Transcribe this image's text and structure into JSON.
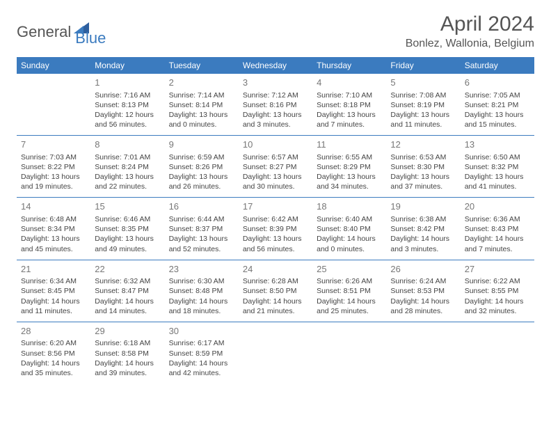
{
  "logo": {
    "general": "General",
    "blue": "Blue"
  },
  "title": "April 2024",
  "location": "Bonlez, Wallonia, Belgium",
  "colors": {
    "header_bg": "#3b7bbf",
    "header_text": "#ffffff",
    "text": "#444444",
    "title_text": "#555555",
    "border": "#3b7bbf"
  },
  "weekdays": [
    "Sunday",
    "Monday",
    "Tuesday",
    "Wednesday",
    "Thursday",
    "Friday",
    "Saturday"
  ],
  "weeks": [
    [
      {
        "day": "",
        "sunrise": "",
        "sunset": "",
        "daylight1": "",
        "daylight2": ""
      },
      {
        "day": "1",
        "sunrise": "Sunrise: 7:16 AM",
        "sunset": "Sunset: 8:13 PM",
        "daylight1": "Daylight: 12 hours",
        "daylight2": "and 56 minutes."
      },
      {
        "day": "2",
        "sunrise": "Sunrise: 7:14 AM",
        "sunset": "Sunset: 8:14 PM",
        "daylight1": "Daylight: 13 hours",
        "daylight2": "and 0 minutes."
      },
      {
        "day": "3",
        "sunrise": "Sunrise: 7:12 AM",
        "sunset": "Sunset: 8:16 PM",
        "daylight1": "Daylight: 13 hours",
        "daylight2": "and 3 minutes."
      },
      {
        "day": "4",
        "sunrise": "Sunrise: 7:10 AM",
        "sunset": "Sunset: 8:18 PM",
        "daylight1": "Daylight: 13 hours",
        "daylight2": "and 7 minutes."
      },
      {
        "day": "5",
        "sunrise": "Sunrise: 7:08 AM",
        "sunset": "Sunset: 8:19 PM",
        "daylight1": "Daylight: 13 hours",
        "daylight2": "and 11 minutes."
      },
      {
        "day": "6",
        "sunrise": "Sunrise: 7:05 AM",
        "sunset": "Sunset: 8:21 PM",
        "daylight1": "Daylight: 13 hours",
        "daylight2": "and 15 minutes."
      }
    ],
    [
      {
        "day": "7",
        "sunrise": "Sunrise: 7:03 AM",
        "sunset": "Sunset: 8:22 PM",
        "daylight1": "Daylight: 13 hours",
        "daylight2": "and 19 minutes."
      },
      {
        "day": "8",
        "sunrise": "Sunrise: 7:01 AM",
        "sunset": "Sunset: 8:24 PM",
        "daylight1": "Daylight: 13 hours",
        "daylight2": "and 22 minutes."
      },
      {
        "day": "9",
        "sunrise": "Sunrise: 6:59 AM",
        "sunset": "Sunset: 8:26 PM",
        "daylight1": "Daylight: 13 hours",
        "daylight2": "and 26 minutes."
      },
      {
        "day": "10",
        "sunrise": "Sunrise: 6:57 AM",
        "sunset": "Sunset: 8:27 PM",
        "daylight1": "Daylight: 13 hours",
        "daylight2": "and 30 minutes."
      },
      {
        "day": "11",
        "sunrise": "Sunrise: 6:55 AM",
        "sunset": "Sunset: 8:29 PM",
        "daylight1": "Daylight: 13 hours",
        "daylight2": "and 34 minutes."
      },
      {
        "day": "12",
        "sunrise": "Sunrise: 6:53 AM",
        "sunset": "Sunset: 8:30 PM",
        "daylight1": "Daylight: 13 hours",
        "daylight2": "and 37 minutes."
      },
      {
        "day": "13",
        "sunrise": "Sunrise: 6:50 AM",
        "sunset": "Sunset: 8:32 PM",
        "daylight1": "Daylight: 13 hours",
        "daylight2": "and 41 minutes."
      }
    ],
    [
      {
        "day": "14",
        "sunrise": "Sunrise: 6:48 AM",
        "sunset": "Sunset: 8:34 PM",
        "daylight1": "Daylight: 13 hours",
        "daylight2": "and 45 minutes."
      },
      {
        "day": "15",
        "sunrise": "Sunrise: 6:46 AM",
        "sunset": "Sunset: 8:35 PM",
        "daylight1": "Daylight: 13 hours",
        "daylight2": "and 49 minutes."
      },
      {
        "day": "16",
        "sunrise": "Sunrise: 6:44 AM",
        "sunset": "Sunset: 8:37 PM",
        "daylight1": "Daylight: 13 hours",
        "daylight2": "and 52 minutes."
      },
      {
        "day": "17",
        "sunrise": "Sunrise: 6:42 AM",
        "sunset": "Sunset: 8:39 PM",
        "daylight1": "Daylight: 13 hours",
        "daylight2": "and 56 minutes."
      },
      {
        "day": "18",
        "sunrise": "Sunrise: 6:40 AM",
        "sunset": "Sunset: 8:40 PM",
        "daylight1": "Daylight: 14 hours",
        "daylight2": "and 0 minutes."
      },
      {
        "day": "19",
        "sunrise": "Sunrise: 6:38 AM",
        "sunset": "Sunset: 8:42 PM",
        "daylight1": "Daylight: 14 hours",
        "daylight2": "and 3 minutes."
      },
      {
        "day": "20",
        "sunrise": "Sunrise: 6:36 AM",
        "sunset": "Sunset: 8:43 PM",
        "daylight1": "Daylight: 14 hours",
        "daylight2": "and 7 minutes."
      }
    ],
    [
      {
        "day": "21",
        "sunrise": "Sunrise: 6:34 AM",
        "sunset": "Sunset: 8:45 PM",
        "daylight1": "Daylight: 14 hours",
        "daylight2": "and 11 minutes."
      },
      {
        "day": "22",
        "sunrise": "Sunrise: 6:32 AM",
        "sunset": "Sunset: 8:47 PM",
        "daylight1": "Daylight: 14 hours",
        "daylight2": "and 14 minutes."
      },
      {
        "day": "23",
        "sunrise": "Sunrise: 6:30 AM",
        "sunset": "Sunset: 8:48 PM",
        "daylight1": "Daylight: 14 hours",
        "daylight2": "and 18 minutes."
      },
      {
        "day": "24",
        "sunrise": "Sunrise: 6:28 AM",
        "sunset": "Sunset: 8:50 PM",
        "daylight1": "Daylight: 14 hours",
        "daylight2": "and 21 minutes."
      },
      {
        "day": "25",
        "sunrise": "Sunrise: 6:26 AM",
        "sunset": "Sunset: 8:51 PM",
        "daylight1": "Daylight: 14 hours",
        "daylight2": "and 25 minutes."
      },
      {
        "day": "26",
        "sunrise": "Sunrise: 6:24 AM",
        "sunset": "Sunset: 8:53 PM",
        "daylight1": "Daylight: 14 hours",
        "daylight2": "and 28 minutes."
      },
      {
        "day": "27",
        "sunrise": "Sunrise: 6:22 AM",
        "sunset": "Sunset: 8:55 PM",
        "daylight1": "Daylight: 14 hours",
        "daylight2": "and 32 minutes."
      }
    ],
    [
      {
        "day": "28",
        "sunrise": "Sunrise: 6:20 AM",
        "sunset": "Sunset: 8:56 PM",
        "daylight1": "Daylight: 14 hours",
        "daylight2": "and 35 minutes."
      },
      {
        "day": "29",
        "sunrise": "Sunrise: 6:18 AM",
        "sunset": "Sunset: 8:58 PM",
        "daylight1": "Daylight: 14 hours",
        "daylight2": "and 39 minutes."
      },
      {
        "day": "30",
        "sunrise": "Sunrise: 6:17 AM",
        "sunset": "Sunset: 8:59 PM",
        "daylight1": "Daylight: 14 hours",
        "daylight2": "and 42 minutes."
      },
      {
        "day": "",
        "sunrise": "",
        "sunset": "",
        "daylight1": "",
        "daylight2": ""
      },
      {
        "day": "",
        "sunrise": "",
        "sunset": "",
        "daylight1": "",
        "daylight2": ""
      },
      {
        "day": "",
        "sunrise": "",
        "sunset": "",
        "daylight1": "",
        "daylight2": ""
      },
      {
        "day": "",
        "sunrise": "",
        "sunset": "",
        "daylight1": "",
        "daylight2": ""
      }
    ]
  ]
}
